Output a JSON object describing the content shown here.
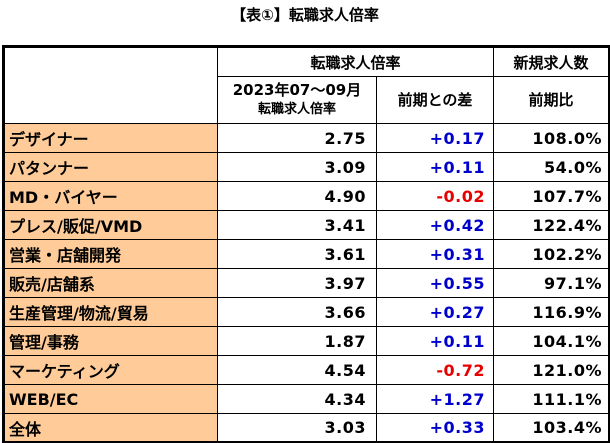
{
  "title": "【表①】転職求人倍率",
  "colors": {
    "label_bg": "#FFCC99",
    "positive": "#0000CC",
    "negative": "#E60000",
    "border": "#000000"
  },
  "header": {
    "group_ratio": "転職求人倍率",
    "group_new": "新規求人数",
    "col_ratio_line1": "2023年07～09月",
    "col_ratio_line2": "転職求人倍率",
    "col_diff": "前期との差",
    "col_new": "前期比"
  },
  "rows": [
    {
      "label": "デザイナー",
      "ratio": "2.75",
      "diff": "+0.17",
      "diff_sign": "pos",
      "new_pct": "108.0%"
    },
    {
      "label": "パタンナー",
      "ratio": "3.09",
      "diff": "+0.11",
      "diff_sign": "pos",
      "new_pct": "54.0%"
    },
    {
      "label": "MD・バイヤー",
      "ratio": "4.90",
      "diff": "-0.02",
      "diff_sign": "neg",
      "new_pct": "107.7%"
    },
    {
      "label": "プレス/販促/VMD",
      "ratio": "3.41",
      "diff": "+0.42",
      "diff_sign": "pos",
      "new_pct": "122.4%"
    },
    {
      "label": "営業・店舗開発",
      "ratio": "3.61",
      "diff": "+0.31",
      "diff_sign": "pos",
      "new_pct": "102.2%"
    },
    {
      "label": "販売/店舗系",
      "ratio": "3.97",
      "diff": "+0.55",
      "diff_sign": "pos",
      "new_pct": "97.1%"
    },
    {
      "label": "生産管理/物流/貿易",
      "ratio": "3.66",
      "diff": "+0.27",
      "diff_sign": "pos",
      "new_pct": "116.9%"
    },
    {
      "label": "管理/事務",
      "ratio": "1.87",
      "diff": "+0.11",
      "diff_sign": "pos",
      "new_pct": "104.1%"
    },
    {
      "label": "マーケティング",
      "ratio": "4.54",
      "diff": "-0.72",
      "diff_sign": "neg",
      "new_pct": "121.0%"
    },
    {
      "label": "WEB/EC",
      "ratio": "4.34",
      "diff": "+1.27",
      "diff_sign": "pos",
      "new_pct": "111.1%"
    },
    {
      "label": "全体",
      "ratio": "3.03",
      "diff": "+0.33",
      "diff_sign": "pos",
      "new_pct": "103.4%"
    }
  ]
}
